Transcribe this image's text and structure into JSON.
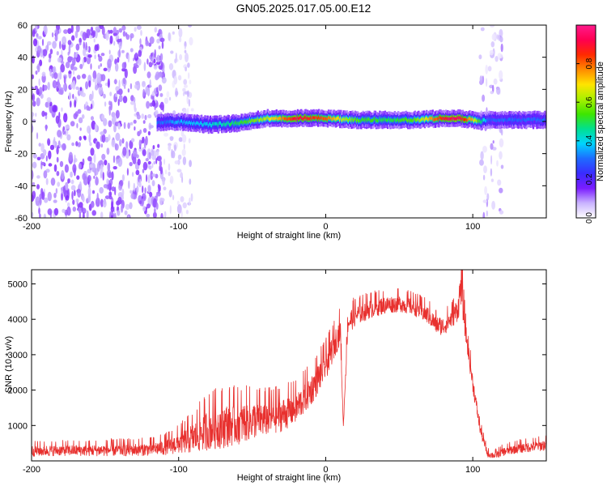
{
  "title": "GN05.2025.017.05.00.E12",
  "colors": {
    "snr_line": "#e8302e",
    "axis": "#000000",
    "background": "#ffffff",
    "colorbar_stops": [
      "#ffffff",
      "#c9b3ff",
      "#7a1cff",
      "#3a2cff",
      "#1e6bff",
      "#00d4ff",
      "#00e090",
      "#3ee600",
      "#a8f000",
      "#ffe400",
      "#ff8a00",
      "#ff2a00",
      "#ff0050",
      "#ff1a8c"
    ]
  },
  "chart_data": [
    {
      "type": "heatmap",
      "title": "",
      "xlabel": "Height of straight line (km)",
      "ylabel": "Frequency (Hz)",
      "xlim": [
        -200,
        150
      ],
      "ylim": [
        -60,
        60
      ],
      "x_ticks": [
        -200,
        -100,
        0,
        100
      ],
      "x_tick_labels": [
        "-200",
        "-100",
        "0",
        "100"
      ],
      "y_ticks": [
        -60,
        -40,
        -20,
        0,
        20,
        40,
        60
      ],
      "y_tick_labels": [
        "-60",
        "-40",
        "-20",
        "0",
        "20",
        "40",
        "60"
      ],
      "colorbar": {
        "label": "Normalized spectral amplitude",
        "range": [
          0,
          1
        ],
        "ticks": [
          0.0,
          0.2,
          0.4,
          0.6,
          0.8
        ],
        "tick_labels": [
          "0.0",
          "0.2",
          "0.4",
          "0.6",
          "0.8"
        ]
      },
      "ridge": {
        "x": [
          -115,
          -100,
          -80,
          -60,
          -40,
          -20,
          0,
          20,
          40,
          60,
          80,
          90,
          100,
          105,
          110,
          120,
          150
        ],
        "frequency": [
          -1,
          0,
          -2,
          -1,
          2,
          2,
          2,
          1,
          1,
          1,
          2,
          2,
          1,
          0,
          1,
          1,
          1
        ],
        "amplitude": [
          0.3,
          0.35,
          0.4,
          0.5,
          0.65,
          0.9,
          0.8,
          0.55,
          0.5,
          0.55,
          0.9,
          0.95,
          0.7,
          0.5,
          0.3,
          0.3,
          0.3
        ]
      },
      "noise_regions": [
        {
          "x": [
            -200,
            -110
          ],
          "frequency": [
            -60,
            60
          ],
          "amplitude": [
            0.05,
            0.15
          ]
        },
        {
          "x": [
            -110,
            -90
          ],
          "frequency": [
            -60,
            60
          ],
          "amplitude": [
            0.02,
            0.08
          ]
        },
        {
          "x": [
            105,
            120
          ],
          "frequency": [
            -60,
            60
          ],
          "amplitude": [
            0.02,
            0.12
          ]
        }
      ]
    },
    {
      "type": "line",
      "title": "",
      "xlabel": "Height of straight line (km)",
      "ylabel": "SNR (10 * v/v)",
      "xlim": [
        -200,
        150
      ],
      "ylim": [
        0,
        5400
      ],
      "x_ticks": [
        -200,
        -100,
        0,
        100
      ],
      "x_tick_labels": [
        "-200",
        "-100",
        "0",
        "100"
      ],
      "y_ticks": [
        1000,
        2000,
        3000,
        4000,
        5000
      ],
      "y_tick_labels": [
        "1000",
        "2000",
        "3000",
        "4000",
        "5000"
      ],
      "series": [
        {
          "x": [
            -200,
            -180,
            -160,
            -140,
            -120,
            -110,
            -100,
            -90,
            -80,
            -70,
            -60,
            -50,
            -40,
            -30,
            -20,
            -10,
            0,
            10,
            12,
            15,
            20,
            30,
            40,
            50,
            60,
            70,
            75,
            80,
            85,
            90,
            92,
            95,
            100,
            105,
            110,
            115,
            120,
            130,
            140,
            150
          ],
          "y": [
            280,
            300,
            300,
            310,
            330,
            380,
            500,
            650,
            900,
            1000,
            1050,
            1150,
            1200,
            1300,
            1500,
            2000,
            2700,
            3700,
            950,
            3900,
            4100,
            4300,
            4400,
            4450,
            4350,
            4100,
            3850,
            3800,
            4000,
            4300,
            5000,
            3700,
            2200,
            900,
            200,
            150,
            250,
            350,
            400,
            450
          ],
          "noise": [
            160,
            160,
            170,
            180,
            190,
            220,
            300,
            450,
            600,
            650,
            600,
            550,
            500,
            480,
            450,
            450,
            420,
            380,
            0,
            350,
            300,
            280,
            260,
            240,
            250,
            260,
            260,
            270,
            280,
            350,
            600,
            300,
            250,
            150,
            100,
            100,
            120,
            140,
            150,
            160
          ]
        }
      ]
    }
  ]
}
